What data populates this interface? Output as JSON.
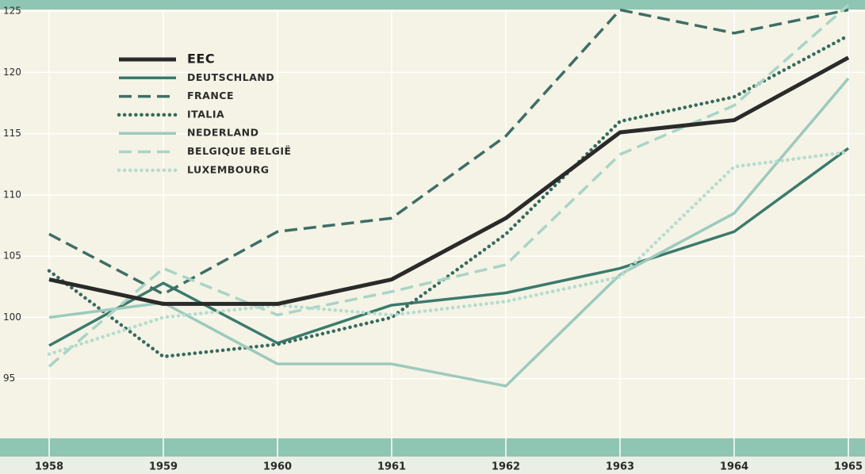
{
  "chart_data": {
    "type": "line",
    "categories": [
      "1958",
      "1959",
      "1960",
      "1961",
      "1962",
      "1963",
      "1964",
      "1965"
    ],
    "series": [
      {
        "name": "EEC",
        "color": "#2a2a2a",
        "style": "solid",
        "values": [
          103.1,
          101.1,
          101.1,
          103.1,
          108.1,
          115.1,
          116.1,
          121.2
        ]
      },
      {
        "name": "DEUTSCHLAND",
        "color": "#3b7a6d",
        "style": "solid",
        "values": [
          97.7,
          102.8,
          97.9,
          101.0,
          102.0,
          104.0,
          107.0,
          113.8
        ]
      },
      {
        "name": "FRANCE",
        "color": "#3e6e66",
        "style": "dashed",
        "values": [
          106.8,
          101.9,
          107.0,
          108.1,
          114.8,
          125.1,
          123.2,
          125.1
        ]
      },
      {
        "name": "ITALIA",
        "color": "#376a5f",
        "style": "dotted",
        "values": [
          103.8,
          96.8,
          97.8,
          100.0,
          106.8,
          116.0,
          118.0,
          123.0
        ]
      },
      {
        "name": "NEDERLAND",
        "color": "#9ccabd",
        "style": "solid",
        "values": [
          100.0,
          101.2,
          96.2,
          96.2,
          94.4,
          103.5,
          108.5,
          119.5
        ]
      },
      {
        "name": "BELGIQUE BELGIË",
        "color": "#a9d4c6",
        "style": "dashed",
        "values": [
          96.0,
          104.0,
          100.2,
          102.1,
          104.3,
          113.3,
          117.3,
          125.5
        ]
      },
      {
        "name": "LUXEMBOURG",
        "color": "#b6dccf",
        "style": "dotted",
        "values": [
          97.0,
          100.0,
          101.0,
          100.2,
          101.3,
          103.3,
          112.3,
          113.5
        ]
      }
    ],
    "ylim": [
      90,
      125
    ],
    "yticks": [
      95,
      100,
      105,
      110,
      115,
      120,
      125
    ],
    "grid": true,
    "legend": "top-left"
  }
}
